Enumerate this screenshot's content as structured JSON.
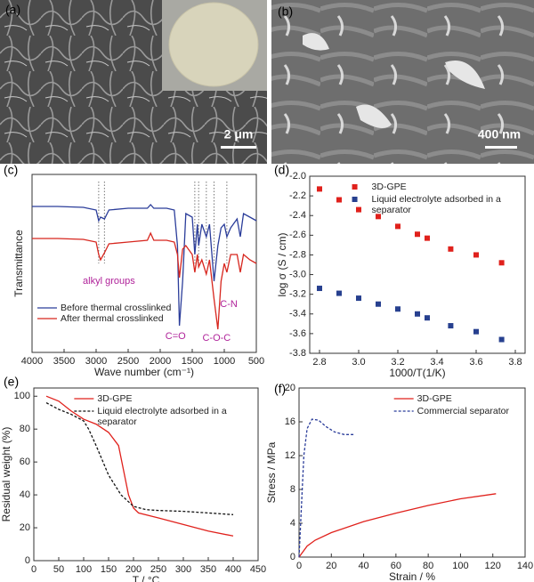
{
  "images": [
    {
      "label": "(a)",
      "scale_bar": "2 μm"
    },
    {
      "label": "(b)",
      "scale_bar": "400 nm"
    }
  ],
  "chart_data": [
    {
      "type": "line",
      "label": "(c)",
      "xlabel": "Wave number (cm⁻¹)",
      "ylabel": "Transmittance",
      "xlim": [
        4000,
        500
      ],
      "xticks": [
        4000,
        3500,
        3000,
        2500,
        2000,
        1500,
        1000,
        500
      ],
      "ylim": [
        0,
        100
      ],
      "x": [
        4000,
        3600,
        3200,
        3000,
        2960,
        2930,
        2870,
        2800,
        2500,
        2200,
        2150,
        2100,
        1900,
        1780,
        1730,
        1700,
        1650,
        1600,
        1500,
        1460,
        1420,
        1400,
        1350,
        1280,
        1230,
        1160,
        1100,
        1050,
        1000,
        960,
        900,
        800,
        750,
        700,
        600,
        500
      ],
      "series": [
        {
          "name": "Before thermal crosslinked",
          "color": "#2b3d9a",
          "values": [
            82,
            82,
            81.5,
            80,
            74,
            76,
            75,
            80,
            81,
            81,
            83,
            81,
            81,
            80,
            60,
            15,
            40,
            78,
            76,
            55,
            72,
            60,
            72,
            65,
            72,
            40,
            60,
            70,
            72,
            65,
            70,
            75,
            65,
            78,
            76,
            74
          ]
        },
        {
          "name": "After thermal crosslinked",
          "color": "#d7261e",
          "values": [
            64,
            64,
            63.5,
            62,
            55,
            52,
            56,
            61,
            62,
            63,
            67,
            63,
            63,
            62,
            55,
            42,
            58,
            60,
            55,
            45,
            55,
            48,
            52,
            44,
            52,
            30,
            13,
            40,
            50,
            45,
            55,
            55,
            45,
            55,
            52,
            50
          ]
        }
      ],
      "reference_lines": [
        2960,
        2870,
        1460,
        1400,
        1280,
        1160,
        960
      ],
      "annotations": [
        "alkyl groups",
        "C=O",
        "C-O-C",
        "C-N"
      ],
      "annotation_color": "#b0239a",
      "legend": "lower left"
    },
    {
      "type": "scatter",
      "label": "(d)",
      "xlabel": "1000/T(1/K)",
      "ylabel": "log σ (S / cm)",
      "xlim": [
        2.75,
        3.85
      ],
      "xticks": [
        2.8,
        {
          "value": 3,
          "label": "3.0"
        },
        3.2,
        3.4,
        3.6,
        3.8
      ],
      "ylim": [
        -3.8,
        -2.0
      ],
      "yticks": [
        {
          "value": -2,
          "label": "-2.0"
        },
        -2.2,
        -2.4,
        -2.6,
        -2.8,
        {
          "value": -3,
          "label": "-3.0"
        },
        -3.2,
        -3.4,
        -3.6,
        -3.8
      ],
      "series": [
        {
          "name": "3D-GPE",
          "color": "#e0211c",
          "x": [
            2.8,
            2.9,
            3.0,
            3.1,
            3.2,
            3.3,
            3.35,
            3.47,
            3.6,
            3.73
          ],
          "values": [
            -2.13,
            -2.24,
            -2.34,
            -2.41,
            -2.51,
            -2.59,
            -2.63,
            -2.74,
            -2.8,
            -2.88
          ]
        },
        {
          "name": "Liquid electrolyte adsorbed in a separator",
          "color": "#27408f",
          "x": [
            2.8,
            2.9,
            3.0,
            3.1,
            3.2,
            3.3,
            3.35,
            3.47,
            3.6,
            3.73
          ],
          "values": [
            -3.14,
            -3.19,
            -3.24,
            -3.3,
            -3.35,
            -3.4,
            -3.44,
            -3.52,
            -3.58,
            -3.66
          ]
        }
      ],
      "legend": "upper right"
    },
    {
      "type": "line",
      "label": "(e)",
      "xlabel": "T / °C",
      "ylabel": "Residual weight (%)",
      "xlim": [
        0,
        450
      ],
      "xticks": [
        0,
        50,
        100,
        150,
        200,
        250,
        300,
        350,
        400,
        450
      ],
      "ylim": [
        0,
        105
      ],
      "yticks": [
        0,
        20,
        40,
        60,
        80,
        100
      ],
      "series": [
        {
          "name": "3D-GPE",
          "color": "#e0211c",
          "linestyle": "solid",
          "x": [
            25,
            50,
            75,
            100,
            125,
            150,
            170,
            180,
            190,
            200,
            210,
            250,
            300,
            350,
            400
          ],
          "values": [
            100,
            97,
            91,
            86,
            83,
            78,
            70,
            55,
            40,
            32,
            29,
            26,
            22,
            18,
            15
          ]
        },
        {
          "name": "Liquid electrolyte adsorbed in a separator",
          "color": "#111111",
          "linestyle": "dashed",
          "x": [
            25,
            50,
            75,
            100,
            110,
            125,
            150,
            175,
            200,
            225,
            250,
            300,
            350,
            400
          ],
          "values": [
            96,
            92,
            89,
            85,
            80,
            70,
            52,
            40,
            33,
            31,
            30.5,
            30,
            29,
            28
          ]
        }
      ],
      "legend": "upper right"
    },
    {
      "type": "line",
      "label": "(f)",
      "xlabel": "Strain / %",
      "ylabel": "Stress / MPa",
      "xlim": [
        0,
        140
      ],
      "xticks": [
        0,
        20,
        40,
        60,
        80,
        100,
        120,
        140
      ],
      "ylim": [
        0,
        20
      ],
      "yticks": [
        0,
        4,
        8,
        12,
        16,
        20
      ],
      "series": [
        {
          "name": "3D-GPE",
          "color": "#e0211c",
          "linestyle": "solid",
          "x": [
            0,
            5,
            10,
            20,
            40,
            60,
            80,
            100,
            122
          ],
          "values": [
            0,
            1.3,
            2,
            2.9,
            4.2,
            5.2,
            6.1,
            6.9,
            7.5
          ]
        },
        {
          "name": "Commercial separator",
          "color": "#2b3d9a",
          "linestyle": "dashed",
          "x": [
            0,
            1,
            2,
            3,
            5,
            8,
            12,
            17,
            22,
            28,
            34
          ],
          "values": [
            0,
            4,
            8,
            12,
            15.2,
            16.3,
            16.2,
            15.4,
            14.8,
            14.5,
            14.5
          ]
        }
      ],
      "legend": "upper right"
    }
  ]
}
